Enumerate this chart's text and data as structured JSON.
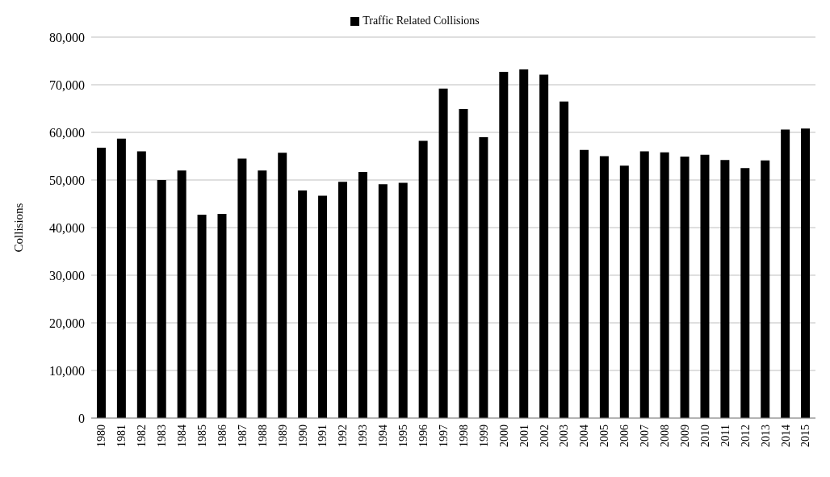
{
  "chart_data": {
    "type": "bar",
    "ylabel": "Collisions",
    "categories": [
      "1980",
      "1981",
      "1982",
      "1983",
      "1984",
      "1985",
      "1986",
      "1987",
      "1988",
      "1989",
      "1990",
      "1991",
      "1992",
      "1993",
      "1994",
      "1995",
      "1996",
      "1997",
      "1998",
      "1999",
      "2000",
      "2001",
      "2002",
      "2003",
      "2004",
      "2005",
      "2006",
      "2007",
      "2008",
      "2009",
      "2010",
      "2011",
      "2012",
      "2013",
      "2014",
      "2015"
    ],
    "series": [
      {
        "name": "Traffic Related Collisions",
        "color": "#000000",
        "values": [
          56800,
          58700,
          56000,
          50000,
          52000,
          42700,
          42900,
          54500,
          52000,
          55700,
          47800,
          46700,
          49600,
          51700,
          49100,
          49400,
          58200,
          69200,
          64900,
          59000,
          72700,
          73200,
          72100,
          66500,
          56300,
          55000,
          53000,
          56000,
          55800,
          54900,
          55300,
          54200,
          52500,
          54100,
          60600,
          60800
        ]
      }
    ],
    "ylim": [
      0,
      80000
    ],
    "yticks": [
      0,
      {
        "value": 10000,
        "label": "10,000"
      },
      {
        "value": 20000,
        "label": "20,000"
      },
      {
        "value": 30000,
        "label": "30,000"
      },
      {
        "value": 40000,
        "label": "40,000"
      },
      {
        "value": 50000,
        "label": "50,000"
      },
      {
        "value": 60000,
        "label": "60,000"
      },
      {
        "value": 70000,
        "label": "70,000"
      },
      {
        "value": 80000,
        "label": "80,000"
      }
    ],
    "grid": "y",
    "legend": "top"
  }
}
